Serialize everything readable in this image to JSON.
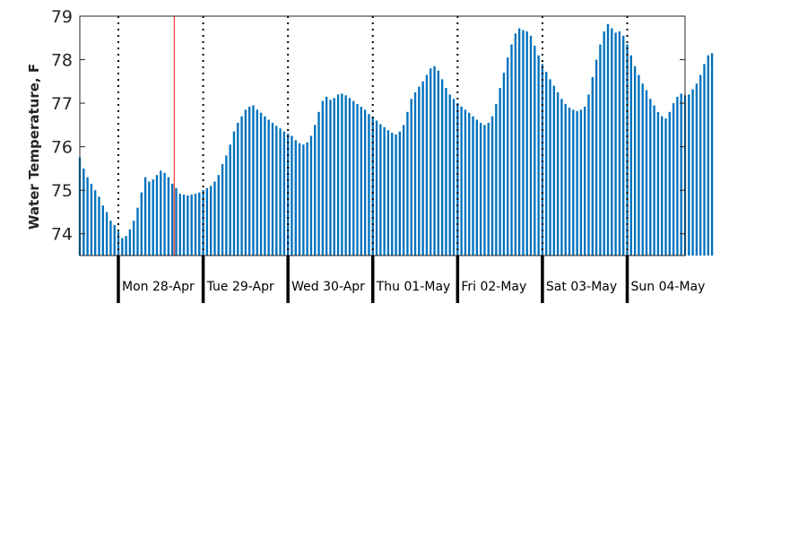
{
  "chart_data": {
    "type": "bar",
    "title": "",
    "xlabel": "",
    "ylabel": "Water Temperature, F",
    "ylim": [
      73.5,
      79
    ],
    "yticks": [
      74,
      75,
      76,
      77,
      78,
      79
    ],
    "ytick_labels": [
      "74",
      "75",
      "76",
      "77",
      "78",
      "79"
    ],
    "x_unit": "hours since 2025-04-27 13:00",
    "xlim": [
      0,
      157
    ],
    "bar_width_hours": 0.55,
    "current_time_x": 24.5,
    "day_boundaries": [
      10,
      32,
      54,
      76,
      98,
      120,
      142
    ],
    "day_labels": [
      "Mon 28-Apr",
      "Tue 29-Apr",
      "Wed 30-Apr",
      "Thu 01-May",
      "Fri 02-May",
      "Sat 03-May",
      "Sun 04-May"
    ],
    "series": [
      {
        "name": "",
        "color": "#0072BD",
        "values": [
          75.75,
          75.5,
          75.3,
          75.15,
          75.0,
          74.85,
          74.65,
          74.5,
          74.3,
          74.2,
          74.05,
          73.9,
          73.95,
          74.1,
          74.3,
          74.6,
          74.95,
          75.3,
          75.2,
          75.25,
          75.35,
          75.45,
          75.4,
          75.3,
          75.15,
          75.05,
          74.92,
          74.9,
          74.88,
          74.9,
          74.92,
          74.95,
          75.0,
          75.05,
          75.1,
          75.2,
          75.35,
          75.6,
          75.8,
          76.05,
          76.35,
          76.55,
          76.7,
          76.85,
          76.92,
          76.95,
          76.85,
          76.78,
          76.7,
          76.62,
          76.55,
          76.48,
          76.42,
          76.35,
          76.3,
          76.25,
          76.15,
          76.08,
          76.05,
          76.1,
          76.25,
          76.5,
          76.8,
          77.05,
          77.15,
          77.08,
          77.12,
          77.2,
          77.22,
          77.18,
          77.12,
          77.05,
          76.98,
          76.92,
          76.85,
          76.75,
          76.68,
          76.6,
          76.52,
          76.45,
          76.38,
          76.32,
          76.28,
          76.35,
          76.5,
          76.8,
          77.1,
          77.25,
          77.38,
          77.5,
          77.65,
          77.8,
          77.85,
          77.75,
          77.55,
          77.35,
          77.2,
          77.1,
          77.0,
          76.92,
          76.85,
          76.78,
          76.7,
          76.62,
          76.55,
          76.5,
          76.55,
          76.7,
          76.98,
          77.35,
          77.7,
          78.05,
          78.35,
          78.6,
          78.72,
          78.68,
          78.65,
          78.55,
          78.32,
          78.1,
          77.9,
          77.72,
          77.55,
          77.4,
          77.25,
          77.1,
          76.98,
          76.9,
          76.85,
          76.82,
          76.85,
          76.92,
          77.2,
          77.6,
          78.0,
          78.35,
          78.65,
          78.82,
          78.72,
          78.62,
          78.65,
          78.55,
          78.35,
          78.1,
          77.85,
          77.65,
          77.45,
          77.3,
          77.1,
          76.95,
          76.8,
          76.7,
          76.65,
          76.8,
          77.0,
          77.15,
          77.22,
          77.18,
          77.2,
          77.32,
          77.45,
          77.65,
          77.9,
          78.1,
          78.15
        ]
      }
    ],
    "grid": false,
    "legend": "none"
  }
}
